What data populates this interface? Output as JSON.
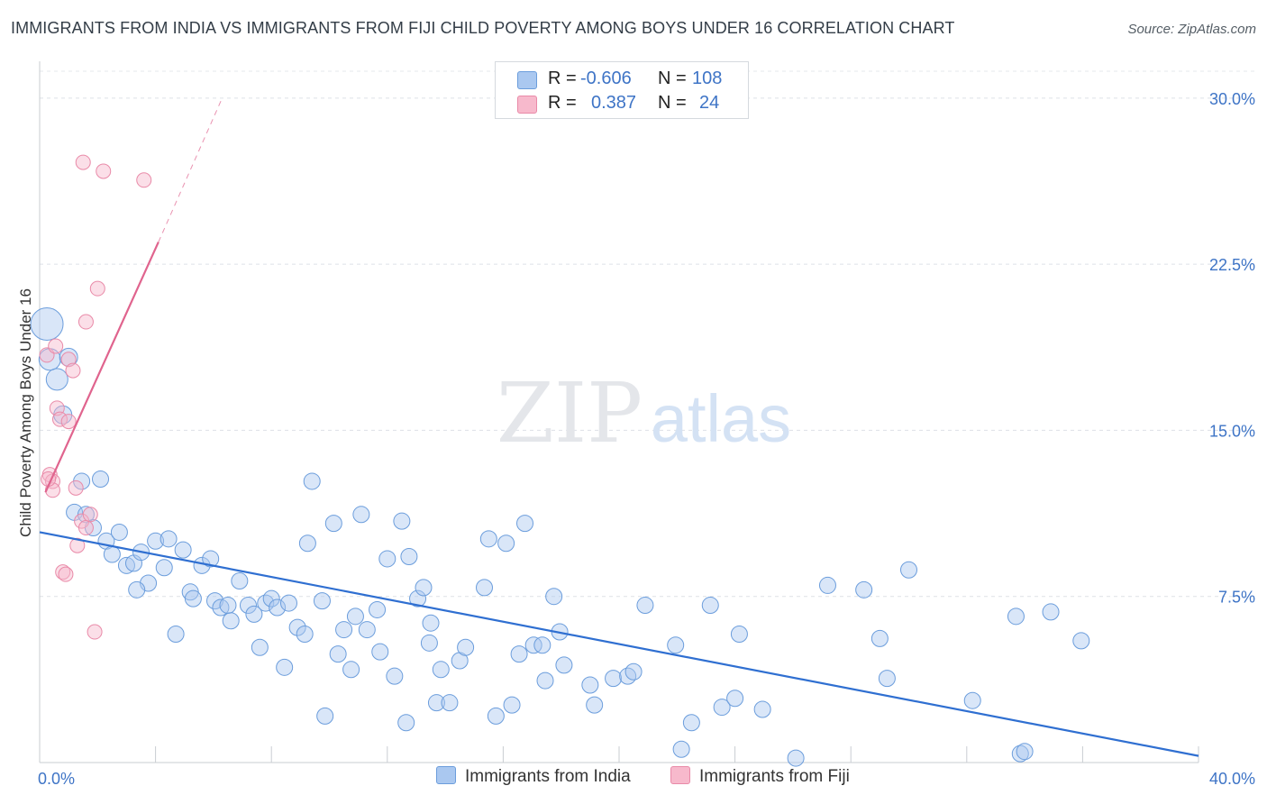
{
  "title": "IMMIGRANTS FROM INDIA VS IMMIGRANTS FROM FIJI CHILD POVERTY AMONG BOYS UNDER 16 CORRELATION CHART",
  "source": "Source: ZipAtlas.com",
  "watermark": {
    "zip": "ZIP",
    "atlas": "atlas"
  },
  "legend": {
    "rows": [
      {
        "r_label": "R =",
        "r_value": "-0.606",
        "n_label": "N =",
        "n_value": "108",
        "color": "#aac8f0"
      },
      {
        "r_label": "R =",
        "r_value": "0.387",
        "n_label": "N =",
        "n_value": "24",
        "color": "#f7b9cc"
      }
    ]
  },
  "bottom_legend": {
    "india": "Immigrants from India",
    "fiji": "Immigrants from Fiji"
  },
  "chart_data": {
    "type": "scatter",
    "xlabel": "",
    "ylabel": "Child Poverty Among Boys Under 16",
    "xlim": [
      0,
      40
    ],
    "ylim": [
      0,
      31.5
    ],
    "x_tick_labels": [
      "0.0%",
      "40.0%"
    ],
    "y_ticks": [
      7.5,
      15.0,
      22.5,
      30.0
    ],
    "y_tick_labels": [
      "7.5%",
      "15.0%",
      "22.5%",
      "30.0%"
    ],
    "grid": "horizontal dashed",
    "colors": {
      "india_fill": "#aac8f0",
      "india_stroke": "#6b9ddc",
      "india_line": "#2f6fd1",
      "fiji_fill": "#f7b9cc",
      "fiji_stroke": "#e98aa8",
      "fiji_line": "#e0648e",
      "axis_text": "#3e74c6"
    },
    "series": [
      {
        "name": "Immigrants from India",
        "trend": {
          "x": [
            0,
            40
          ],
          "y": [
            10.4,
            0.3
          ]
        },
        "points": [
          {
            "x": 0.25,
            "y": 19.8,
            "r": 18
          },
          {
            "x": 0.35,
            "y": 18.2,
            "r": 12
          },
          {
            "x": 0.6,
            "y": 17.3,
            "r": 12
          },
          {
            "x": 0.8,
            "y": 15.7,
            "r": 10
          },
          {
            "x": 1.0,
            "y": 18.3,
            "r": 10
          },
          {
            "x": 1.45,
            "y": 12.7,
            "r": 9
          },
          {
            "x": 2.1,
            "y": 12.8,
            "r": 9
          },
          {
            "x": 1.2,
            "y": 11.3,
            "r": 9
          },
          {
            "x": 1.6,
            "y": 11.2,
            "r": 9
          },
          {
            "x": 1.85,
            "y": 10.6,
            "r": 9
          },
          {
            "x": 2.3,
            "y": 10.0,
            "r": 9
          },
          {
            "x": 2.5,
            "y": 9.4,
            "r": 9
          },
          {
            "x": 2.75,
            "y": 10.4,
            "r": 9
          },
          {
            "x": 3.0,
            "y": 8.9,
            "r": 9
          },
          {
            "x": 3.25,
            "y": 9.0,
            "r": 9
          },
          {
            "x": 3.5,
            "y": 9.5,
            "r": 9
          },
          {
            "x": 3.75,
            "y": 8.1,
            "r": 9
          },
          {
            "x": 3.35,
            "y": 7.8,
            "r": 9
          },
          {
            "x": 4.0,
            "y": 10.0,
            "r": 9
          },
          {
            "x": 4.3,
            "y": 8.8,
            "r": 9
          },
          {
            "x": 4.45,
            "y": 10.1,
            "r": 9
          },
          {
            "x": 4.7,
            "y": 5.8,
            "r": 9
          },
          {
            "x": 4.95,
            "y": 9.6,
            "r": 9
          },
          {
            "x": 5.2,
            "y": 7.7,
            "r": 9
          },
          {
            "x": 5.3,
            "y": 7.4,
            "r": 9
          },
          {
            "x": 5.6,
            "y": 8.9,
            "r": 9
          },
          {
            "x": 5.9,
            "y": 9.2,
            "r": 9
          },
          {
            "x": 6.05,
            "y": 7.3,
            "r": 9
          },
          {
            "x": 6.25,
            "y": 7.0,
            "r": 9
          },
          {
            "x": 6.5,
            "y": 7.1,
            "r": 9
          },
          {
            "x": 6.6,
            "y": 6.4,
            "r": 9
          },
          {
            "x": 6.9,
            "y": 8.2,
            "r": 9
          },
          {
            "x": 7.2,
            "y": 7.1,
            "r": 9
          },
          {
            "x": 7.4,
            "y": 6.7,
            "r": 9
          },
          {
            "x": 7.6,
            "y": 5.2,
            "r": 9
          },
          {
            "x": 7.8,
            "y": 7.2,
            "r": 9
          },
          {
            "x": 8.0,
            "y": 7.4,
            "r": 9
          },
          {
            "x": 8.2,
            "y": 7.0,
            "r": 9
          },
          {
            "x": 8.45,
            "y": 4.3,
            "r": 9
          },
          {
            "x": 8.6,
            "y": 7.2,
            "r": 9
          },
          {
            "x": 8.9,
            "y": 6.1,
            "r": 9
          },
          {
            "x": 9.15,
            "y": 5.8,
            "r": 9
          },
          {
            "x": 9.25,
            "y": 9.9,
            "r": 9
          },
          {
            "x": 9.4,
            "y": 12.7,
            "r": 9
          },
          {
            "x": 9.75,
            "y": 7.3,
            "r": 9
          },
          {
            "x": 9.85,
            "y": 2.1,
            "r": 9
          },
          {
            "x": 10.15,
            "y": 10.8,
            "r": 9
          },
          {
            "x": 10.3,
            "y": 4.9,
            "r": 9
          },
          {
            "x": 10.5,
            "y": 6.0,
            "r": 9
          },
          {
            "x": 10.75,
            "y": 4.2,
            "r": 9
          },
          {
            "x": 10.9,
            "y": 6.6,
            "r": 9
          },
          {
            "x": 11.1,
            "y": 11.2,
            "r": 9
          },
          {
            "x": 11.3,
            "y": 6.0,
            "r": 9
          },
          {
            "x": 11.65,
            "y": 6.9,
            "r": 9
          },
          {
            "x": 11.75,
            "y": 5.0,
            "r": 9
          },
          {
            "x": 12.0,
            "y": 9.2,
            "r": 9
          },
          {
            "x": 12.25,
            "y": 3.9,
            "r": 9
          },
          {
            "x": 12.5,
            "y": 10.9,
            "r": 9
          },
          {
            "x": 12.65,
            "y": 1.8,
            "r": 9
          },
          {
            "x": 12.75,
            "y": 9.3,
            "r": 9
          },
          {
            "x": 13.05,
            "y": 7.4,
            "r": 9
          },
          {
            "x": 13.25,
            "y": 7.9,
            "r": 9
          },
          {
            "x": 13.45,
            "y": 5.4,
            "r": 9
          },
          {
            "x": 13.5,
            "y": 6.3,
            "r": 9
          },
          {
            "x": 13.7,
            "y": 2.7,
            "r": 9
          },
          {
            "x": 13.85,
            "y": 4.2,
            "r": 9
          },
          {
            "x": 14.15,
            "y": 2.7,
            "r": 9
          },
          {
            "x": 14.5,
            "y": 4.6,
            "r": 9
          },
          {
            "x": 14.7,
            "y": 5.2,
            "r": 9
          },
          {
            "x": 15.35,
            "y": 7.9,
            "r": 9
          },
          {
            "x": 15.5,
            "y": 10.1,
            "r": 9
          },
          {
            "x": 15.75,
            "y": 2.1,
            "r": 9
          },
          {
            "x": 16.1,
            "y": 9.9,
            "r": 9
          },
          {
            "x": 16.3,
            "y": 2.6,
            "r": 9
          },
          {
            "x": 16.55,
            "y": 4.9,
            "r": 9
          },
          {
            "x": 16.75,
            "y": 10.8,
            "r": 9
          },
          {
            "x": 17.05,
            "y": 5.3,
            "r": 9
          },
          {
            "x": 17.35,
            "y": 5.3,
            "r": 9
          },
          {
            "x": 17.45,
            "y": 3.7,
            "r": 9
          },
          {
            "x": 17.75,
            "y": 7.5,
            "r": 9
          },
          {
            "x": 17.95,
            "y": 5.9,
            "r": 9
          },
          {
            "x": 18.1,
            "y": 4.4,
            "r": 9
          },
          {
            "x": 19.0,
            "y": 3.5,
            "r": 9
          },
          {
            "x": 19.15,
            "y": 2.6,
            "r": 9
          },
          {
            "x": 19.8,
            "y": 3.8,
            "r": 9
          },
          {
            "x": 20.3,
            "y": 3.9,
            "r": 9
          },
          {
            "x": 20.5,
            "y": 4.1,
            "r": 9
          },
          {
            "x": 20.9,
            "y": 7.1,
            "r": 9
          },
          {
            "x": 21.95,
            "y": 5.3,
            "r": 9
          },
          {
            "x": 22.15,
            "y": 0.6,
            "r": 9
          },
          {
            "x": 22.5,
            "y": 1.8,
            "r": 9
          },
          {
            "x": 23.15,
            "y": 7.1,
            "r": 9
          },
          {
            "x": 23.55,
            "y": 2.5,
            "r": 9
          },
          {
            "x": 24.0,
            "y": 2.9,
            "r": 9
          },
          {
            "x": 24.15,
            "y": 5.8,
            "r": 9
          },
          {
            "x": 24.95,
            "y": 2.4,
            "r": 9
          },
          {
            "x": 26.1,
            "y": 0.2,
            "r": 9
          },
          {
            "x": 27.2,
            "y": 8.0,
            "r": 9
          },
          {
            "x": 28.45,
            "y": 7.8,
            "r": 9
          },
          {
            "x": 29.0,
            "y": 5.6,
            "r": 9
          },
          {
            "x": 29.25,
            "y": 3.8,
            "r": 9
          },
          {
            "x": 30.0,
            "y": 8.7,
            "r": 9
          },
          {
            "x": 32.2,
            "y": 2.8,
            "r": 9
          },
          {
            "x": 33.7,
            "y": 6.6,
            "r": 9
          },
          {
            "x": 33.85,
            "y": 0.4,
            "r": 9
          },
          {
            "x": 34.0,
            "y": 0.5,
            "r": 9
          },
          {
            "x": 34.9,
            "y": 6.8,
            "r": 9
          },
          {
            "x": 35.95,
            "y": 5.5,
            "r": 9
          }
        ]
      },
      {
        "name": "Immigrants from Fiji",
        "trend": {
          "x": [
            0.2,
            4.1
          ],
          "y": [
            12.2,
            23.5
          ],
          "dash_to": [
            6.3,
            30.0
          ]
        },
        "points": [
          {
            "x": 0.25,
            "y": 18.4
          },
          {
            "x": 0.35,
            "y": 13.0
          },
          {
            "x": 0.45,
            "y": 12.7
          },
          {
            "x": 0.45,
            "y": 12.3
          },
          {
            "x": 0.55,
            "y": 18.8
          },
          {
            "x": 0.6,
            "y": 16.0
          },
          {
            "x": 0.7,
            "y": 15.5
          },
          {
            "x": 0.8,
            "y": 8.6
          },
          {
            "x": 0.9,
            "y": 8.5
          },
          {
            "x": 1.0,
            "y": 15.4
          },
          {
            "x": 1.0,
            "y": 18.2
          },
          {
            "x": 1.15,
            "y": 17.7
          },
          {
            "x": 1.25,
            "y": 12.4
          },
          {
            "x": 1.3,
            "y": 9.8
          },
          {
            "x": 1.45,
            "y": 10.9
          },
          {
            "x": 1.5,
            "y": 27.1
          },
          {
            "x": 1.6,
            "y": 19.9
          },
          {
            "x": 1.6,
            "y": 10.6
          },
          {
            "x": 1.75,
            "y": 11.2
          },
          {
            "x": 1.9,
            "y": 5.9
          },
          {
            "x": 2.0,
            "y": 21.4
          },
          {
            "x": 2.2,
            "y": 26.7
          },
          {
            "x": 3.6,
            "y": 26.3
          },
          {
            "x": 0.3,
            "y": 12.8
          }
        ]
      }
    ]
  }
}
